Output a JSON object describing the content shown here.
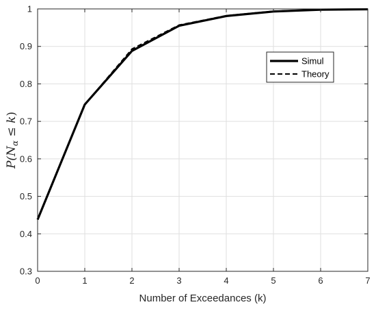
{
  "chart_data": {
    "type": "line",
    "title": "",
    "xlabel": "Number of Exceedances (k)",
    "ylabel": "P(N_α ≤ k)",
    "ylabel_parts": {
      "prefix": "P(N",
      "subscript": "α",
      "middle": " ≤ ",
      "var": "k",
      "suffix": ")"
    },
    "xlim": [
      0,
      7
    ],
    "ylim": [
      0.3,
      1
    ],
    "xticks": [
      0,
      1,
      2,
      3,
      4,
      5,
      6,
      7
    ],
    "yticks": [
      0.3,
      0.4,
      0.5,
      0.6,
      0.7,
      0.8,
      0.9,
      1
    ],
    "grid": true,
    "legend_position": "top-right",
    "x": [
      0,
      1,
      2,
      3,
      4,
      5,
      6,
      7
    ],
    "series": [
      {
        "name": "Simul",
        "style": "solid",
        "color": "#000000",
        "values": [
          0.438,
          0.745,
          0.888,
          0.955,
          0.981,
          0.993,
          0.998,
          0.999
        ]
      },
      {
        "name": "Theory",
        "style": "dashed",
        "color": "#000000",
        "values": [
          0.438,
          0.745,
          0.893,
          0.957,
          0.982,
          0.994,
          0.998,
          0.999
        ]
      }
    ]
  }
}
